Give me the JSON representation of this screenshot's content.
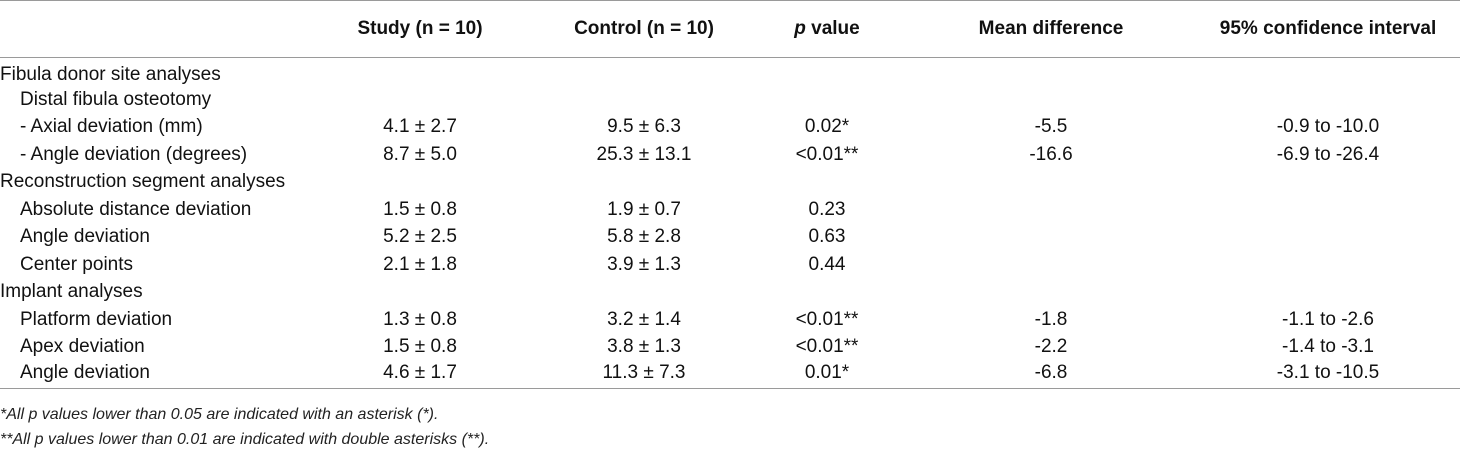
{
  "table": {
    "headers": [
      "",
      "Study (n = 10)",
      "Control (n = 10)",
      "value",
      "Mean difference",
      "95% confidence interval"
    ],
    "p_label": "p",
    "rows": [
      {
        "indent": 0,
        "cells": [
          "Fibula donor site analyses",
          "",
          "",
          "",
          "",
          ""
        ]
      },
      {
        "indent": 1,
        "cells": [
          "Distal fibula osteotomy",
          "",
          "",
          "",
          "",
          ""
        ]
      },
      {
        "indent": 1,
        "cells": [
          "- Axial deviation (mm)",
          "4.1 ± 2.7",
          "9.5 ± 6.3",
          "0.02*",
          "-5.5",
          "-0.9 to -10.0"
        ]
      },
      {
        "indent": 1,
        "cells": [
          "- Angle deviation (degrees)",
          "8.7 ± 5.0",
          "25.3 ± 13.1",
          "<0.01**",
          "-16.6",
          "-6.9 to -26.4"
        ]
      },
      {
        "indent": 0,
        "cells": [
          "Reconstruction segment analyses",
          "",
          "",
          "",
          "",
          ""
        ]
      },
      {
        "indent": 1,
        "cells": [
          "Absolute distance deviation",
          "1.5 ± 0.8",
          "1.9 ± 0.7",
          "0.23",
          "",
          ""
        ]
      },
      {
        "indent": 1,
        "cells": [
          "Angle deviation",
          "5.2 ± 2.5",
          "5.8 ± 2.8",
          "0.63",
          "",
          ""
        ]
      },
      {
        "indent": 1,
        "cells": [
          "Center points",
          "2.1 ± 1.8",
          "3.9 ± 1.3",
          "0.44",
          "",
          ""
        ]
      },
      {
        "indent": 0,
        "cells": [
          "Implant analyses",
          "",
          "",
          "",
          "",
          ""
        ]
      },
      {
        "indent": 1,
        "cells": [
          "Platform deviation",
          "1.3 ± 0.8",
          "3.2 ± 1.4",
          "<0.01**",
          "-1.8",
          "-1.1 to -2.6"
        ]
      },
      {
        "indent": 1,
        "cells": [
          "Apex deviation",
          "1.5 ± 0.8",
          "3.8 ± 1.3",
          "<0.01**",
          "-2.2",
          "-1.4 to -3.1"
        ]
      },
      {
        "indent": 1,
        "cells": [
          "Angle deviation",
          "4.6 ± 1.7",
          "11.3 ± 7.3",
          "0.01*",
          "-6.8",
          "-3.1 to -10.5"
        ]
      }
    ]
  },
  "footnotes": [
    "*All p values lower than 0.05 are indicated with an asterisk (*).",
    "**All p values lower than 0.01 are indicated with double asterisks (**)."
  ]
}
